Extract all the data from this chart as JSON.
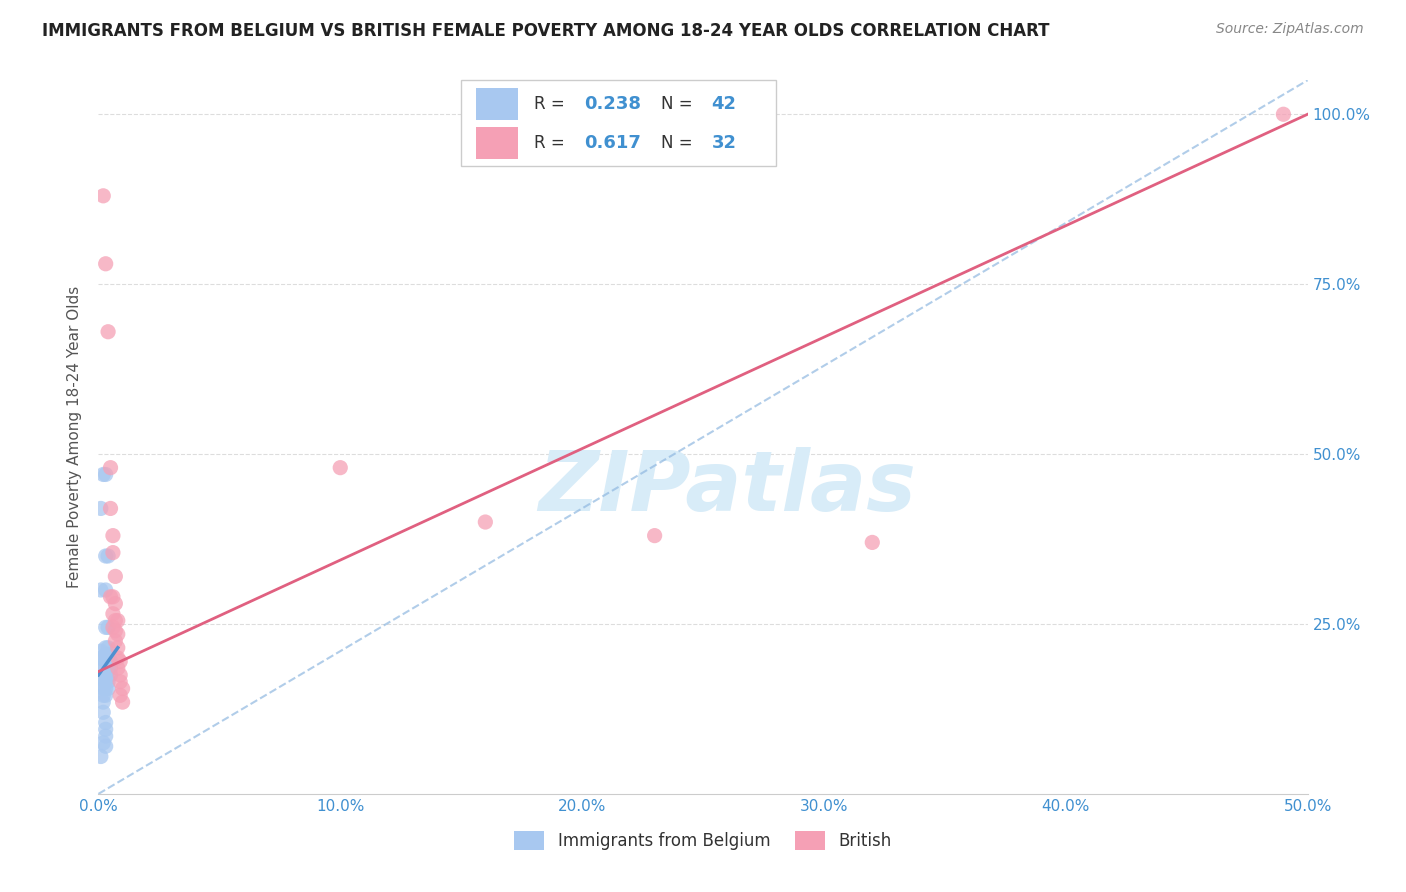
{
  "title": "IMMIGRANTS FROM BELGIUM VS BRITISH FEMALE POVERTY AMONG 18-24 YEAR OLDS CORRELATION CHART",
  "source": "Source: ZipAtlas.com",
  "ylabel": "Female Poverty Among 18-24 Year Olds",
  "legend_label1": "Immigrants from Belgium",
  "legend_label2": "British",
  "legend_r1": "0.238",
  "legend_n1": "42",
  "legend_r2": "0.617",
  "legend_n2": "32",
  "color_blue": "#A8C8F0",
  "color_pink": "#F5A0B5",
  "color_blue_line": "#5090D0",
  "color_pink_line": "#E06080",
  "color_blue_text": "#4090D0",
  "watermark_color": "#D8ECF8",
  "xlim": [
    0.0,
    0.5
  ],
  "ylim": [
    0.0,
    1.05
  ],
  "xtick_vals": [
    0.0,
    0.1,
    0.2,
    0.3,
    0.4,
    0.5
  ],
  "xtick_labels": [
    "0.0%",
    "10.0%",
    "20.0%",
    "30.0%",
    "40.0%",
    "50.0%"
  ],
  "ytick_vals": [
    0.25,
    0.5,
    0.75,
    1.0
  ],
  "ytick_labels": [
    "25.0%",
    "50.0%",
    "75.0%",
    "100.0%"
  ],
  "blue_scatter": [
    [
      0.002,
      0.47
    ],
    [
      0.003,
      0.47
    ],
    [
      0.001,
      0.42
    ],
    [
      0.003,
      0.35
    ],
    [
      0.004,
      0.35
    ],
    [
      0.001,
      0.3
    ],
    [
      0.003,
      0.3
    ],
    [
      0.003,
      0.245
    ],
    [
      0.004,
      0.245
    ],
    [
      0.003,
      0.215
    ],
    [
      0.004,
      0.215
    ],
    [
      0.003,
      0.205
    ],
    [
      0.004,
      0.205
    ],
    [
      0.003,
      0.195
    ],
    [
      0.004,
      0.195
    ],
    [
      0.005,
      0.195
    ],
    [
      0.004,
      0.185
    ],
    [
      0.005,
      0.185
    ],
    [
      0.003,
      0.175
    ],
    [
      0.004,
      0.175
    ],
    [
      0.005,
      0.175
    ],
    [
      0.003,
      0.165
    ],
    [
      0.004,
      0.165
    ],
    [
      0.002,
      0.155
    ],
    [
      0.003,
      0.155
    ],
    [
      0.004,
      0.155
    ],
    [
      0.002,
      0.145
    ],
    [
      0.003,
      0.145
    ],
    [
      0.002,
      0.135
    ],
    [
      0.002,
      0.12
    ],
    [
      0.003,
      0.105
    ],
    [
      0.003,
      0.095
    ],
    [
      0.003,
      0.085
    ],
    [
      0.002,
      0.075
    ],
    [
      0.003,
      0.07
    ],
    [
      0.001,
      0.055
    ],
    [
      0.001,
      0.16
    ],
    [
      0.001,
      0.17
    ],
    [
      0.001,
      0.185
    ],
    [
      0.001,
      0.19
    ],
    [
      0.001,
      0.2
    ],
    [
      0.001,
      0.21
    ]
  ],
  "pink_scatter": [
    [
      0.002,
      0.88
    ],
    [
      0.003,
      0.78
    ],
    [
      0.004,
      0.68
    ],
    [
      0.005,
      0.48
    ],
    [
      0.005,
      0.42
    ],
    [
      0.006,
      0.38
    ],
    [
      0.006,
      0.355
    ],
    [
      0.007,
      0.32
    ],
    [
      0.005,
      0.29
    ],
    [
      0.006,
      0.29
    ],
    [
      0.007,
      0.28
    ],
    [
      0.006,
      0.265
    ],
    [
      0.007,
      0.255
    ],
    [
      0.008,
      0.255
    ],
    [
      0.006,
      0.245
    ],
    [
      0.007,
      0.24
    ],
    [
      0.008,
      0.235
    ],
    [
      0.007,
      0.225
    ],
    [
      0.008,
      0.215
    ],
    [
      0.008,
      0.2
    ],
    [
      0.009,
      0.195
    ],
    [
      0.008,
      0.185
    ],
    [
      0.009,
      0.175
    ],
    [
      0.009,
      0.165
    ],
    [
      0.01,
      0.155
    ],
    [
      0.009,
      0.145
    ],
    [
      0.01,
      0.135
    ],
    [
      0.1,
      0.48
    ],
    [
      0.16,
      0.4
    ],
    [
      0.23,
      0.38
    ],
    [
      0.32,
      0.37
    ],
    [
      0.49,
      1.0
    ]
  ],
  "blue_line": [
    [
      0.0,
      0.175
    ],
    [
      0.008,
      0.215
    ]
  ],
  "pink_line": [
    [
      0.0,
      0.18
    ],
    [
      0.5,
      1.0
    ]
  ],
  "dash_line": [
    [
      0.0,
      0.0
    ],
    [
      0.5,
      1.05
    ]
  ]
}
